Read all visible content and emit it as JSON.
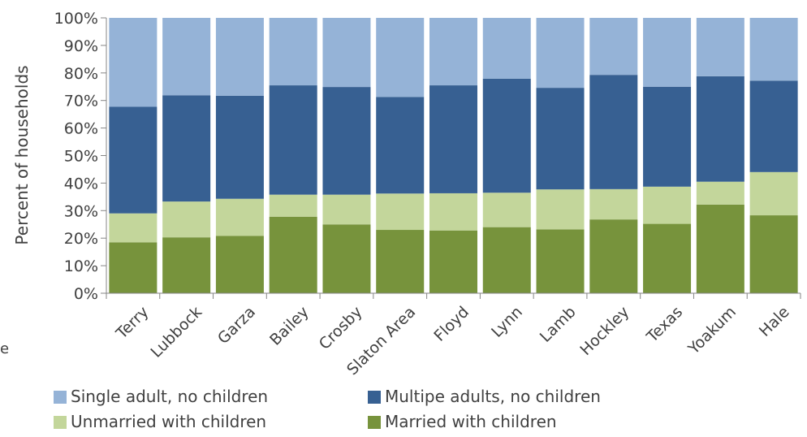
{
  "chart_data": {
    "type": "bar",
    "stacked": true,
    "categories": [
      "Terry",
      "Lubbock",
      "Garza",
      "Bailey",
      "Crosby",
      "Slaton Area",
      "Floyd",
      "Lynn",
      "Lamb",
      "Hockley",
      "Texas",
      "Yoakum",
      "Hale"
    ],
    "series": [
      {
        "name": "Married  with children",
        "color": "#77933c",
        "values": [
          18.5,
          20.3,
          20.8,
          27.8,
          25.0,
          23.0,
          22.8,
          24.0,
          23.2,
          26.8,
          25.2,
          32.2,
          28.3
        ]
      },
      {
        "name": "Unmarried with children",
        "color": "#c3d69b",
        "values": [
          10.5,
          13.0,
          13.5,
          8.0,
          10.8,
          13.2,
          13.5,
          12.5,
          14.5,
          11.0,
          13.5,
          8.3,
          15.7
        ]
      },
      {
        "name": "Multipe adults, no children",
        "color": "#376092",
        "values": [
          38.7,
          38.6,
          37.4,
          39.7,
          39.1,
          35.1,
          39.2,
          41.4,
          36.9,
          41.5,
          36.3,
          38.3,
          33.2
        ]
      },
      {
        "name": "Single adult, no children",
        "color": "#95b3d7",
        "values": [
          32.3,
          28.1,
          28.3,
          24.5,
          25.1,
          28.7,
          24.5,
          22.1,
          25.4,
          20.7,
          25.0,
          21.2,
          22.8
        ]
      }
    ],
    "ylabel": "Percent of households",
    "xlabel": "",
    "ylim": [
      0,
      100
    ],
    "yticks": [
      "0%",
      "10%",
      "20%",
      "30%",
      "40%",
      "50%",
      "60%",
      "70%",
      "80%",
      "90%",
      "100%"
    ],
    "legend": {
      "placement": "bottom",
      "order": [
        "Single adult, no children",
        "Multipe adults, no children",
        "Unmarried with children",
        "Married  with children"
      ]
    },
    "grid": false
  },
  "edge_text": "e"
}
